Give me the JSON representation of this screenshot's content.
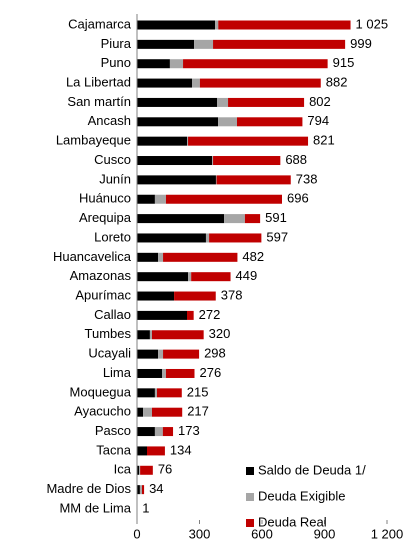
{
  "chart_data": {
    "type": "stacked-barh",
    "categories": [
      "Cajamarca",
      "Piura",
      "Puno",
      "La Libertad",
      "San martín",
      "Ancash",
      "Lambayeque",
      "Cusco",
      "Junín",
      "Huánuco",
      "Arequipa",
      "Loreto",
      "Huancavelica",
      "Amazonas",
      "Apurímac",
      "Callao",
      "Tumbes",
      "Ucayali",
      "Lima",
      "Moquegua",
      "Ayacucho",
      "Pasco",
      "Tacna",
      "Ica",
      "Madre de Dios",
      "MM de Lima"
    ],
    "series": [
      {
        "name": "Saldo de Deuda 1/",
        "color": "#000000",
        "values": [
          375,
          274,
          158,
          264,
          384,
          389,
          240,
          360,
          379,
          86,
          418,
          331,
          101,
          245,
          178,
          240,
          62,
          101,
          120,
          86,
          29,
          86,
          48,
          10,
          14,
          1
        ]
      },
      {
        "name": "Deuda Exigible",
        "color": "#a6a6a6",
        "values": [
          15,
          91,
          63,
          38,
          53,
          91,
          5,
          5,
          3,
          53,
          100,
          15,
          24,
          15,
          0,
          0,
          10,
          24,
          19,
          10,
          43,
          38,
          0,
          5,
          10,
          0
        ]
      },
      {
        "name": "Deuda Real",
        "color": "#c00000",
        "values": [
          635,
          634,
          694,
          580,
          365,
          314,
          576,
          323,
          356,
          557,
          73,
          251,
          357,
          189,
          200,
          32,
          248,
          173,
          137,
          119,
          145,
          49,
          86,
          61,
          10,
          0
        ]
      }
    ],
    "totals": [
      1025,
      999,
      915,
      882,
      802,
      794,
      821,
      688,
      738,
      696,
      591,
      597,
      482,
      449,
      378,
      272,
      320,
      298,
      276,
      215,
      217,
      173,
      134,
      76,
      34,
      1
    ],
    "value_labels": [
      "1 025",
      "999",
      "915",
      "882",
      "802",
      "794",
      "821",
      "688",
      "738",
      "696",
      "591",
      "597",
      "482",
      "449",
      "378",
      "272",
      "320",
      "298",
      "276",
      "215",
      "217",
      "173",
      "134",
      "76",
      "34",
      "1"
    ],
    "xlim": [
      0,
      1200
    ],
    "xticks": [
      0,
      300,
      600,
      900,
      {
        "value": 1200,
        "label": "1 200"
      }
    ],
    "legend": "lower right"
  }
}
